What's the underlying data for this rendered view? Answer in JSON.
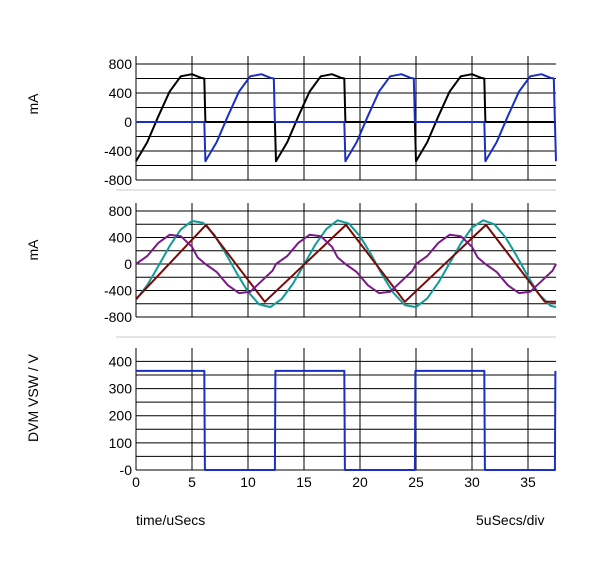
{
  "footer": {
    "left": "time/uSecs",
    "right": "5uSecs/div"
  },
  "chart_data": [
    {
      "type": "line",
      "ylabel": "mA",
      "xlim": [
        0,
        37.5
      ],
      "ylim": [
        -800,
        800
      ],
      "yticks": [
        800,
        400,
        0,
        -400,
        -800
      ],
      "grid": true,
      "series": [
        {
          "color": "#000000",
          "x": [
            0,
            1,
            2,
            3,
            4,
            5,
            5.8,
            6.1,
            6.2,
            12.4,
            12.5,
            13.5,
            14.5,
            15.5,
            16.5,
            17.5,
            18.3,
            18.6,
            18.7,
            24.9,
            25,
            26,
            27,
            28,
            29,
            30,
            30.8,
            31.1,
            31.2,
            37.5
          ],
          "y": [
            -540,
            -280,
            80,
            420,
            630,
            660,
            610,
            600,
            0,
            0,
            -540,
            -280,
            80,
            420,
            630,
            660,
            610,
            600,
            0,
            0,
            -540,
            -280,
            80,
            420,
            630,
            660,
            610,
            600,
            0,
            0
          ]
        },
        {
          "color": "#1c2fc4",
          "x": [
            0,
            6.1,
            6.2,
            7.2,
            8.2,
            9.2,
            10.2,
            11.2,
            12.0,
            12.3,
            12.4,
            18.6,
            18.7,
            19.7,
            20.7,
            21.7,
            22.7,
            23.7,
            24.5,
            24.8,
            24.9,
            31.1,
            31.2,
            32.2,
            33.2,
            34.2,
            35.2,
            36.2,
            37.0,
            37.3,
            37.4,
            37.5
          ],
          "y": [
            0,
            0,
            -540,
            -280,
            80,
            420,
            630,
            660,
            610,
            600,
            0,
            0,
            -540,
            -280,
            80,
            420,
            630,
            660,
            610,
            600,
            0,
            0,
            -540,
            -280,
            80,
            420,
            630,
            660,
            610,
            600,
            0,
            -540
          ]
        }
      ]
    },
    {
      "type": "line",
      "ylabel": "mA",
      "xlim": [
        0,
        37.5
      ],
      "ylim": [
        -800,
        800
      ],
      "yticks": [
        800,
        400,
        0,
        -400,
        -800
      ],
      "grid": true,
      "series": [
        {
          "color": "#119b98",
          "x": [
            0,
            1,
            2,
            3,
            4,
            5,
            6,
            7,
            8,
            9,
            10,
            11,
            12,
            13,
            14,
            15,
            16,
            17,
            18,
            19,
            20,
            21,
            22,
            23,
            24,
            25,
            26,
            27,
            28,
            29,
            30,
            31,
            32,
            33,
            34,
            35,
            36,
            37,
            37.5
          ],
          "y": [
            -540,
            -320,
            -30,
            270,
            520,
            650,
            620,
            440,
            160,
            -140,
            -420,
            -610,
            -650,
            -530,
            -300,
            -10,
            290,
            530,
            660,
            610,
            420,
            140,
            -170,
            -440,
            -620,
            -650,
            -520,
            -280,
            10,
            310,
            550,
            660,
            600,
            400,
            120,
            -190,
            -460,
            -630,
            -650
          ]
        },
        {
          "color": "#7a0a0a",
          "x": [
            0,
            6.25,
            11.5,
            18.75,
            24.0,
            31.25,
            36.5,
            37.5
          ],
          "y": [
            -530,
            590,
            -570,
            590,
            -570,
            590,
            -570,
            -570
          ]
        },
        {
          "color": "#7a1a86",
          "x": [
            0,
            1,
            2,
            3,
            4,
            5,
            5.5,
            6.2,
            7.2,
            8.2,
            9.2,
            10.2,
            11.2,
            12.2,
            12.5,
            13.5,
            14.5,
            15.5,
            16.5,
            17.5,
            18,
            18.7,
            19.7,
            20.7,
            21.7,
            22.7,
            23.7,
            24.7,
            25,
            26,
            27,
            28,
            29,
            30,
            30.5,
            31.2,
            32.2,
            33.2,
            34.2,
            35.2,
            36.2,
            37.2,
            37.5
          ],
          "y": [
            0,
            120,
            320,
            440,
            420,
            260,
            100,
            0,
            -120,
            -320,
            -440,
            -420,
            -260,
            -100,
            0,
            120,
            320,
            440,
            420,
            260,
            100,
            0,
            -120,
            -320,
            -440,
            -420,
            -260,
            -100,
            0,
            120,
            320,
            440,
            420,
            260,
            100,
            0,
            -120,
            -320,
            -440,
            -420,
            -260,
            -100,
            0
          ]
        }
      ]
    },
    {
      "type": "line",
      "ylabel": "DVM VSW / V",
      "xlabel": "time/uSecs",
      "xlim": [
        0,
        37.5
      ],
      "xticks": [
        0,
        5,
        10,
        15,
        20,
        25,
        30,
        35
      ],
      "ylim": [
        0,
        420
      ],
      "yticks": [
        400,
        300,
        200,
        100,
        0
      ],
      "ytick_labels": [
        "400",
        "300",
        "200",
        "100",
        "-0"
      ],
      "grid": true,
      "series": [
        {
          "color": "#1c2fc4",
          "x": [
            0,
            5.0,
            6.1,
            6.15,
            12.4,
            12.45,
            18.6,
            18.65,
            24.9,
            24.95,
            31.1,
            31.15,
            37.4,
            37.45
          ],
          "y": [
            365,
            365,
            365,
            0,
            0,
            365,
            365,
            0,
            0,
            365,
            365,
            0,
            0,
            365
          ]
        }
      ]
    }
  ]
}
